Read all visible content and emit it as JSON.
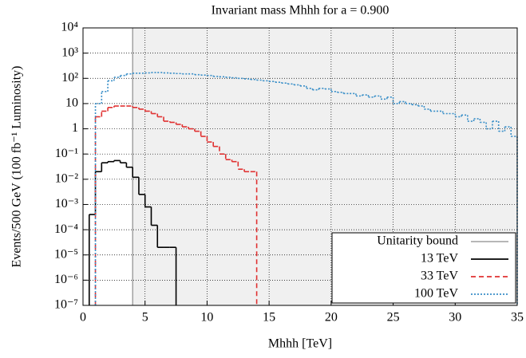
{
  "chart_data": {
    "type": "histogram",
    "title": "Invariant mass Mhhh for a = 0.900",
    "xlabel": "Mhhh [TeV]",
    "ylabel": "Events/500 GeV (100 fb⁻¹ Luminosity)",
    "xlim": [
      0,
      35
    ],
    "ylim": [
      1e-07,
      10000
    ],
    "log_y": true,
    "grid": true,
    "legend": "lower right",
    "xticks": [
      0,
      5,
      10,
      15,
      20,
      25,
      30,
      35
    ],
    "yticks": [
      {
        "value": 10000,
        "label": "10⁴"
      },
      {
        "value": 1000,
        "label": "10³"
      },
      {
        "value": 100,
        "label": "10²"
      },
      10,
      1,
      {
        "value": 0.1,
        "label": "10⁻¹"
      },
      {
        "value": 0.01,
        "label": "10⁻²"
      },
      {
        "value": 0.001,
        "label": "10⁻³"
      },
      {
        "value": 0.0001,
        "label": "10⁻⁴"
      },
      {
        "value": 1e-05,
        "label": "10⁻⁵"
      },
      {
        "value": 1e-06,
        "label": "10⁻⁶"
      },
      {
        "value": 1e-07,
        "label": "10⁻⁷"
      }
    ],
    "unitarity_bound": {
      "name": "Unitarity bound",
      "x": 4,
      "color": "#8c8c8c"
    },
    "series": [
      {
        "name": "13 TeV",
        "color": "#000000",
        "dash": "solid",
        "bins": [
          0.5,
          1,
          1.5,
          2,
          2.5,
          3,
          3.5,
          4,
          4.5,
          5,
          5.5,
          6,
          6.5,
          7,
          7.5
        ],
        "values": [
          0.0004,
          0.02,
          0.045,
          0.05,
          0.055,
          0.045,
          0.03,
          0.012,
          0.0025,
          0.0008,
          0.00015,
          2e-05,
          2e-05,
          2e-05
        ]
      },
      {
        "name": "33 TeV",
        "color": "#e03030",
        "dash": "dashed",
        "bins": [
          1,
          1.5,
          2,
          2.5,
          3,
          3.5,
          4,
          4.5,
          5,
          5.5,
          6,
          6.5,
          7,
          7.5,
          8,
          8.5,
          9,
          9.5,
          10,
          10.5,
          11,
          11.5,
          12,
          12.5,
          13,
          13.5,
          14
        ],
        "values": [
          3,
          5,
          7,
          8,
          8,
          8,
          7,
          6,
          5,
          4,
          3,
          2,
          1.8,
          1.5,
          1.2,
          1,
          0.8,
          0.5,
          0.3,
          0.2,
          0.1,
          0.06,
          0.05,
          0.025,
          0.02,
          0.02
        ]
      },
      {
        "name": "100 TeV",
        "color": "#3a8fc8",
        "dash": "dotted",
        "bins": [
          1,
          1.5,
          2,
          2.5,
          3,
          3.5,
          4,
          4.5,
          5,
          5.5,
          6,
          6.5,
          7,
          7.5,
          8,
          8.5,
          9,
          9.5,
          10,
          10.5,
          11,
          11.5,
          12,
          12.5,
          13,
          13.5,
          14,
          14.5,
          15,
          15.5,
          16,
          16.5,
          17,
          17.5,
          18,
          18.5,
          19,
          19.5,
          20,
          20.5,
          21,
          21.5,
          22,
          22.5,
          23,
          23.5,
          24,
          24.5,
          25,
          25.5,
          26,
          26.5,
          27,
          27.5,
          28,
          28.5,
          29,
          29.5,
          30,
          30.5,
          31,
          31.5,
          32,
          32.5,
          33,
          33.5,
          34,
          34.5,
          35
        ],
        "values": [
          10,
          30,
          80,
          110,
          130,
          150,
          160,
          160,
          165,
          170,
          170,
          165,
          160,
          155,
          150,
          150,
          140,
          135,
          130,
          120,
          115,
          110,
          105,
          100,
          95,
          90,
          85,
          80,
          75,
          70,
          65,
          60,
          55,
          50,
          40,
          35,
          40,
          38,
          30,
          28,
          25,
          25,
          20,
          22,
          18,
          20,
          15,
          18,
          10,
          12,
          10,
          9,
          8,
          6,
          5,
          5,
          4,
          4,
          3,
          3.5,
          2,
          2.5,
          1.8,
          1,
          2,
          0.8,
          1.2,
          0.5
        ]
      }
    ]
  }
}
